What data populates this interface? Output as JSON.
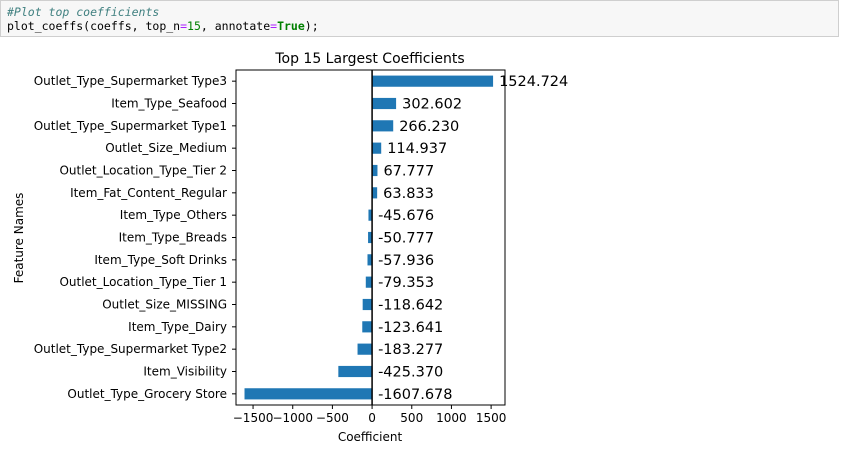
{
  "code_cell": {
    "comment": "#Plot top coefficients",
    "call_prefix": "plot_coeffs(coeffs, top_n",
    "eq1": "=",
    "num": "15",
    "sep": ", annotate",
    "eq2": "=",
    "kw": "True",
    "suffix": ");"
  },
  "chart_data": {
    "type": "bar",
    "orientation": "horizontal",
    "title": "Top 15 Largest Coefficients",
    "xlabel": "Coefficient",
    "ylabel": "Feature Names",
    "xlim": [
      -1715,
      1675
    ],
    "xticks": [
      -1500,
      -1000,
      -500,
      0,
      500,
      1000,
      1500
    ],
    "xtick_labels": [
      "−1500",
      "−1000",
      "−500",
      "0",
      "500",
      "1000",
      "1500"
    ],
    "bar_color": "#1f77b4",
    "zero_line": true,
    "categories": [
      "Outlet_Type_Supermarket Type3",
      "Item_Type_Seafood",
      "Outlet_Type_Supermarket Type1",
      "Outlet_Size_Medium",
      "Outlet_Location_Type_Tier 2",
      "Item_Fat_Content_Regular",
      "Item_Type_Others",
      "Item_Type_Breads",
      "Item_Type_Soft Drinks",
      "Outlet_Location_Type_Tier 1",
      "Outlet_Size_MISSING",
      "Item_Type_Dairy",
      "Outlet_Type_Supermarket Type2",
      "Item_Visibility",
      "Outlet_Type_Grocery Store"
    ],
    "values": [
      1524.724,
      302.602,
      266.23,
      114.937,
      67.777,
      63.833,
      -45.676,
      -50.777,
      -57.936,
      -79.353,
      -118.642,
      -123.641,
      -183.277,
      -425.37,
      -1607.678
    ],
    "annotations": [
      "1524.724",
      "302.602",
      "266.230",
      "114.937",
      "67.777",
      "63.833",
      "-45.676",
      "-50.777",
      "-57.936",
      "-79.353",
      "-118.642",
      "-123.641",
      "-183.277",
      "-425.370",
      "-1607.678"
    ]
  }
}
